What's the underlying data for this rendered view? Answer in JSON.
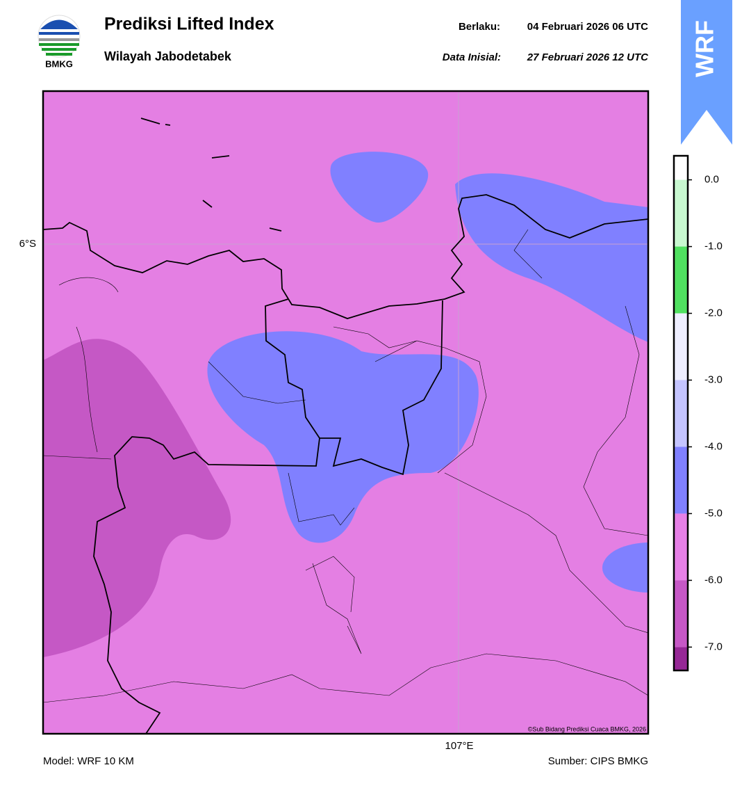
{
  "header": {
    "title": "Prediksi Lifted Index",
    "subtitle": "Wilayah Jabodetabek",
    "valid_label": "Berlaku:",
    "valid": "04 Februari 2026 06 UTC",
    "init_label": "Data Inisial:",
    "init": "27 Februari 2026 12 UTC",
    "logo": "BMKG",
    "badge": "WRF"
  },
  "map": {
    "lat_label": "6°S",
    "lon_label": "107°E",
    "credit": "©Sub Bidang Prediksi Cuaca BMKG, 2026"
  },
  "colorbar": {
    "lim": [
      -7.35,
      0.36
    ],
    "ticks": [
      {
        "value": 0,
        "label": "0.0"
      },
      {
        "value": -1,
        "label": "-1.0"
      },
      {
        "value": -2,
        "label": "-2.0"
      },
      {
        "value": -3,
        "label": "-3.0"
      },
      {
        "value": -4,
        "label": "-4.0"
      },
      {
        "value": -5,
        "label": "-5.0"
      },
      {
        "value": -6,
        "label": "-6.0"
      },
      {
        "value": -7,
        "label": "-7.0"
      }
    ],
    "bands": [
      {
        "from": 0,
        "to": 0.36,
        "color": "#ffffff"
      },
      {
        "from": -1,
        "to": 0,
        "color": "#c8f8d0"
      },
      {
        "from": -2,
        "to": -1,
        "color": "#50e060"
      },
      {
        "from": -3,
        "to": -2,
        "color": "#eeeeff"
      },
      {
        "from": -4,
        "to": -3,
        "color": "#c4c4ff"
      },
      {
        "from": -5,
        "to": -4,
        "color": "#8080ff"
      },
      {
        "from": -6,
        "to": -5,
        "color": "#e680e6"
      },
      {
        "from": -7,
        "to": -6,
        "color": "#c658c6"
      },
      {
        "from": -7.35,
        "to": -7,
        "color": "#962896"
      }
    ]
  },
  "footer": {
    "model": "Model: WRF 10 KM",
    "source": "Sumber: CIPS BMKG"
  }
}
